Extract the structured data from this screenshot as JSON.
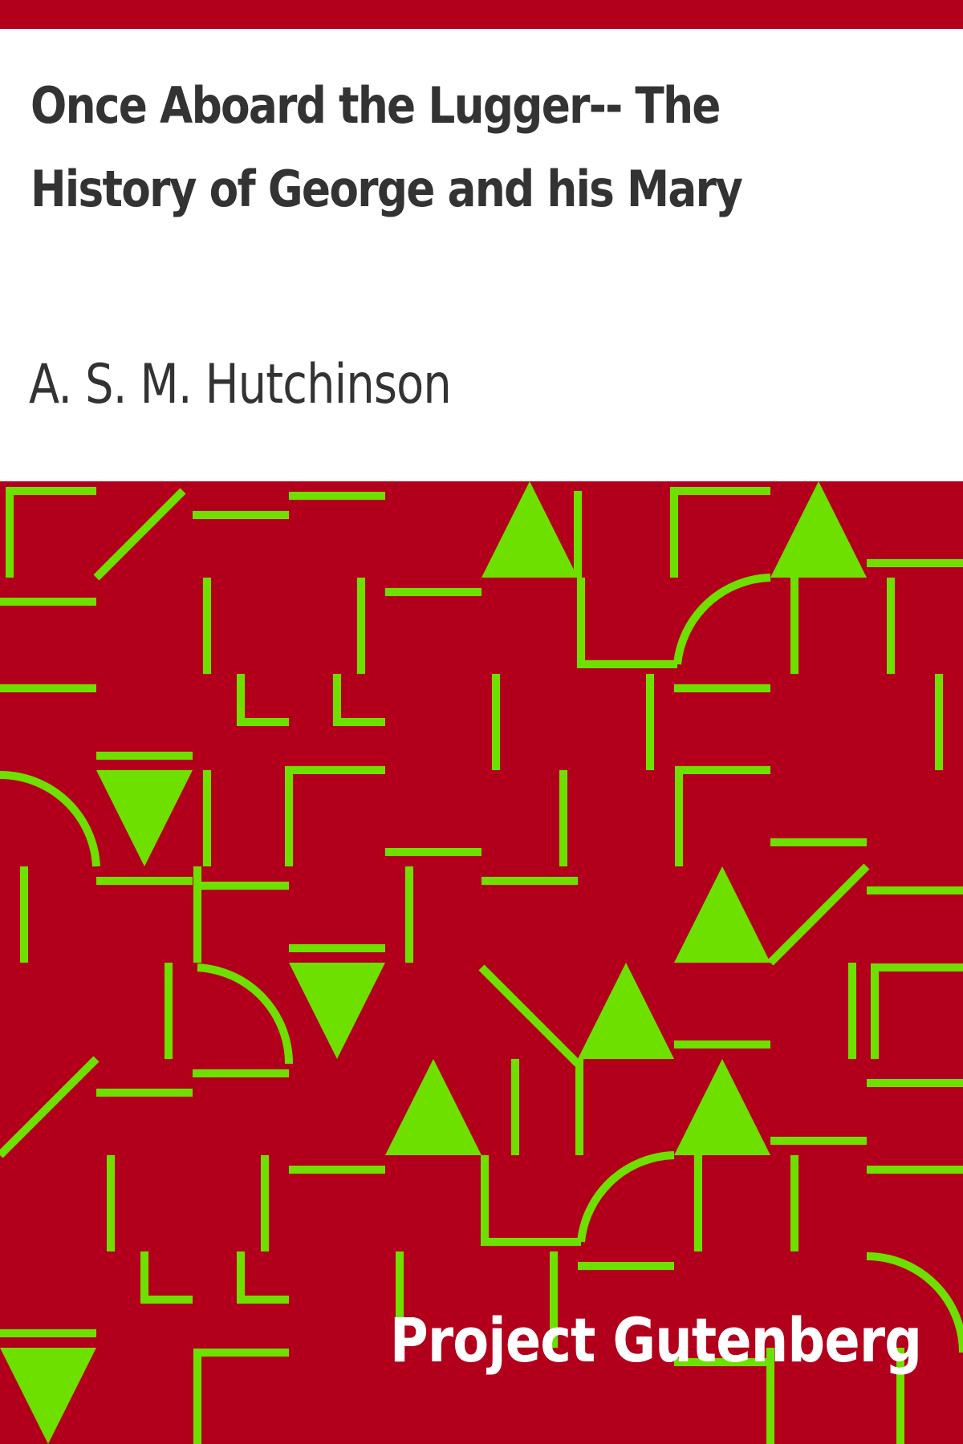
{
  "book": {
    "title": "Once Aboard the Lugger-- The History of George and his Mary",
    "author": "A. S. M. Hutchinson",
    "publisher": "Project Gutenberg"
  },
  "colors": {
    "background": "#ffffff",
    "band": "#b2001c",
    "pattern": "#6ee000",
    "text": "#333333",
    "publisher_text": "#ffffff"
  }
}
